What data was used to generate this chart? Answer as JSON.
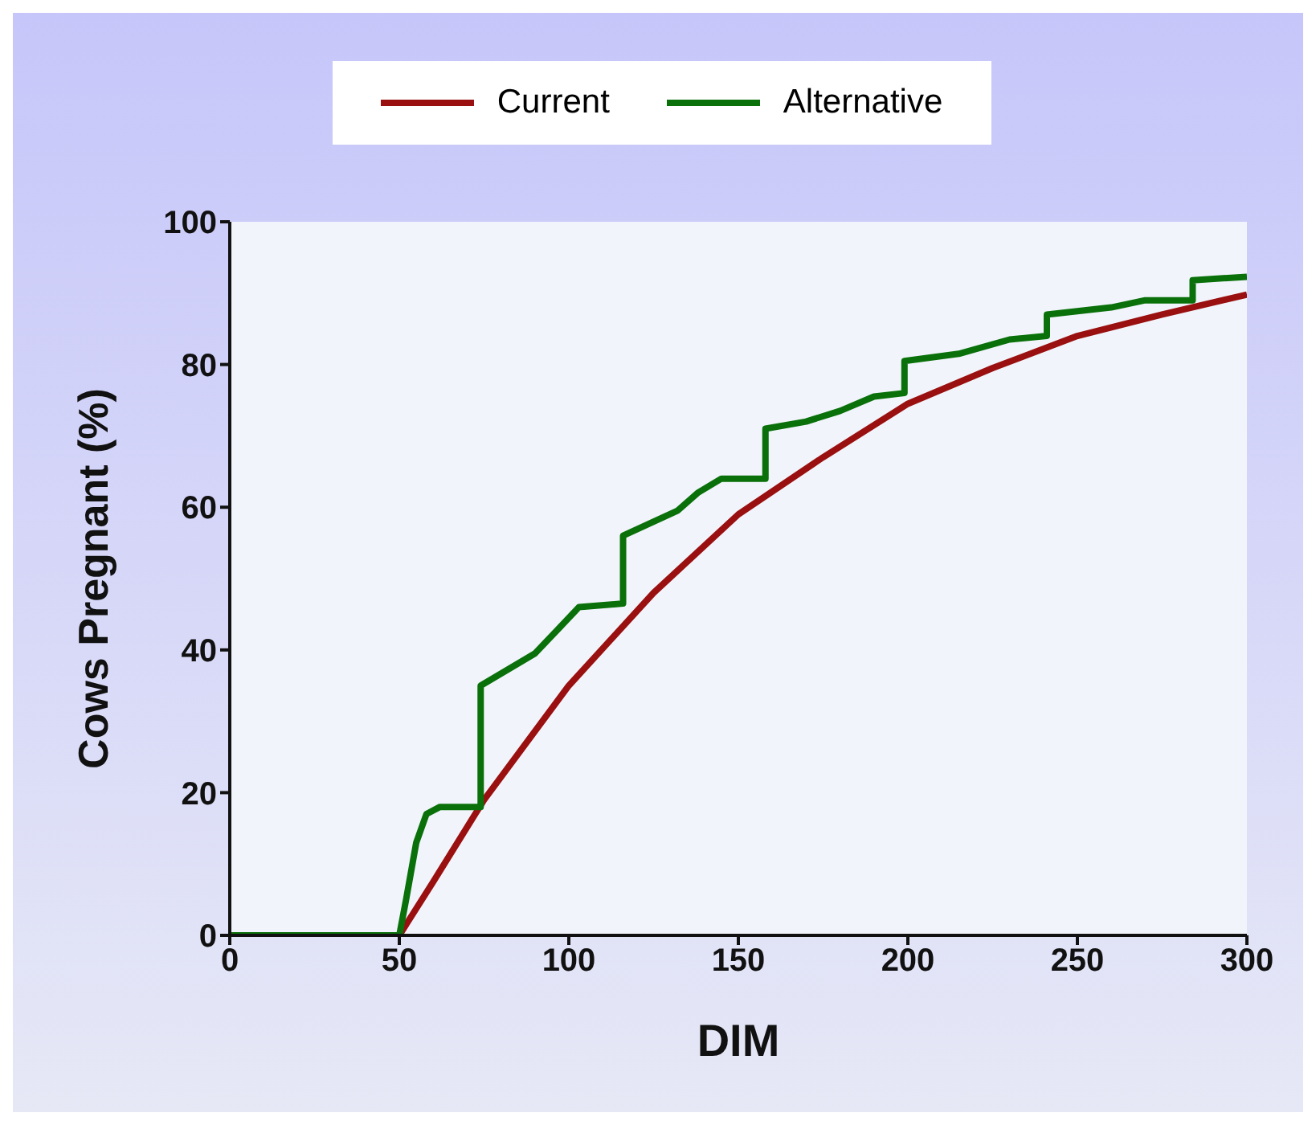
{
  "chart_data": {
    "type": "line",
    "xlabel": "DIM",
    "ylabel": "Cows Pregnant (%)",
    "xlim": [
      0,
      300
    ],
    "xticks": [
      0,
      50,
      100,
      150,
      200,
      250,
      300
    ],
    "ylim": [
      0,
      100
    ],
    "yticks": [
      0,
      20,
      40,
      60,
      80,
      100
    ],
    "grid": false,
    "legend": "top",
    "marker": "none",
    "line_style": "solid",
    "series": [
      {
        "name": "Current",
        "color": "#9a1010",
        "x": [
          0,
          50,
          60,
          75,
          100,
          125,
          150,
          175,
          200,
          225,
          250,
          275,
          300
        ],
        "values": [
          0,
          0,
          7.5,
          19,
          35,
          48,
          59,
          67,
          74.5,
          79.5,
          84,
          87,
          89.8
        ]
      },
      {
        "name": "Alternative",
        "color": "#0a700a",
        "x": [
          0,
          50,
          52,
          55,
          58,
          62,
          74,
          74,
          90,
          97,
          103,
          116,
          116,
          132,
          138,
          145,
          158,
          158,
          170,
          180,
          190,
          199,
          199,
          215,
          230,
          241,
          241,
          260,
          270,
          284,
          284,
          300
        ],
        "values": [
          0,
          0,
          5,
          13,
          17,
          18,
          18,
          35,
          39.5,
          43,
          46,
          46.5,
          56,
          59.5,
          62,
          64,
          64,
          71,
          72,
          73.5,
          75.5,
          76,
          80.5,
          81.5,
          83.5,
          84,
          87,
          88,
          89,
          89,
          91.8,
          92.3
        ]
      }
    ]
  }
}
